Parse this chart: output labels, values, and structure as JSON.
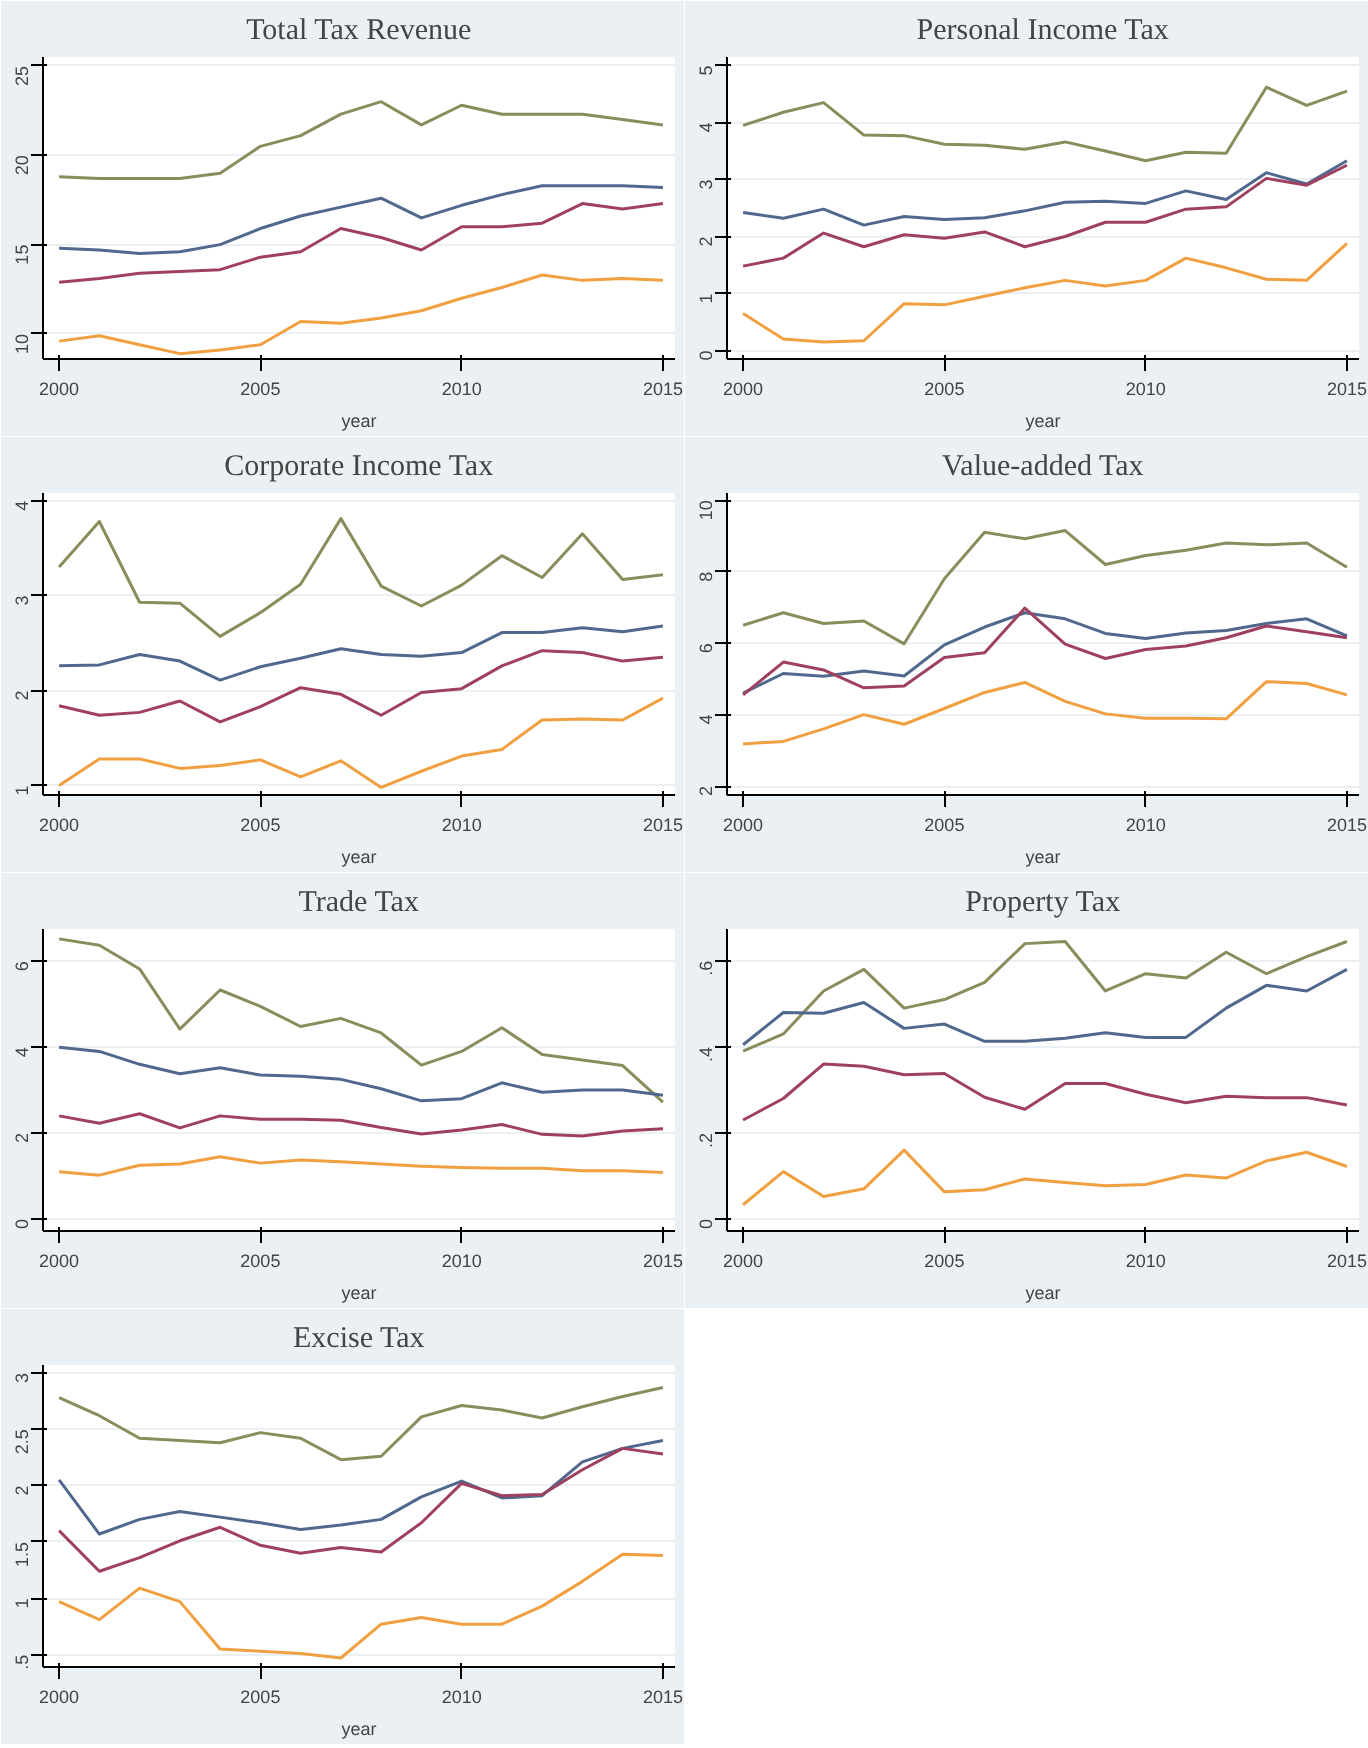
{
  "chart_data": [
    {
      "type": "line",
      "title": "Total Tax Revenue",
      "xlabel": "year",
      "x": [
        2000,
        2001,
        2002,
        2003,
        2004,
        2005,
        2006,
        2007,
        2008,
        2009,
        2010,
        2011,
        2012,
        2013,
        2014,
        2015
      ],
      "xlim": [
        1999.6,
        2015.3
      ],
      "xticks": [
        2000,
        2005,
        2010,
        2015
      ],
      "ylim": [
        8.6,
        25.5
      ],
      "yticks": [
        10,
        15,
        20,
        25
      ],
      "grid": "y",
      "series": [
        {
          "color": "#8a8c5c",
          "values": [
            18.8,
            18.7,
            18.7,
            18.7,
            19.0,
            20.5,
            21.1,
            22.3,
            23.0,
            21.7,
            22.8,
            22.3,
            22.3,
            22.3,
            22.0,
            21.7
          ]
        },
        {
          "color": "#50688e",
          "values": [
            14.8,
            14.7,
            14.5,
            14.6,
            15.0,
            15.9,
            16.6,
            17.1,
            17.6,
            16.5,
            17.2,
            17.8,
            18.3,
            18.3,
            18.3,
            18.2
          ]
        },
        {
          "color": "#a04060",
          "values": [
            12.9,
            13.1,
            13.4,
            13.5,
            13.6,
            14.3,
            14.6,
            15.9,
            15.4,
            14.7,
            16.0,
            16.0,
            16.2,
            17.3,
            17.0,
            17.3
          ]
        },
        {
          "color": "#f0a040",
          "values": [
            9.6,
            9.9,
            9.4,
            8.9,
            9.1,
            9.4,
            10.7,
            10.6,
            10.9,
            11.3,
            12.0,
            12.6,
            13.3,
            13.0,
            13.1,
            13.0
          ]
        }
      ]
    },
    {
      "type": "line",
      "title": "Personal Income Tax",
      "xlabel": "year",
      "x": [
        2000,
        2001,
        2002,
        2003,
        2004,
        2005,
        2006,
        2007,
        2008,
        2009,
        2010,
        2011,
        2012,
        2013,
        2014,
        2015
      ],
      "xlim": [
        1999.6,
        2015.3
      ],
      "xticks": [
        2000,
        2005,
        2010,
        2015
      ],
      "ylim": [
        -0.15,
        5.15
      ],
      "yticks": [
        0,
        1,
        2,
        3,
        4,
        5
      ],
      "grid": "y",
      "series": [
        {
          "color": "#8a8c5c",
          "values": [
            3.95,
            4.18,
            4.35,
            3.78,
            3.77,
            3.62,
            3.6,
            3.53,
            3.66,
            3.5,
            3.33,
            3.48,
            3.46,
            4.62,
            4.3,
            4.55
          ]
        },
        {
          "color": "#50688e",
          "values": [
            2.42,
            2.32,
            2.48,
            2.2,
            2.35,
            2.3,
            2.33,
            2.45,
            2.6,
            2.62,
            2.58,
            2.8,
            2.65,
            3.12,
            2.92,
            3.33
          ]
        },
        {
          "color": "#a04060",
          "values": [
            1.48,
            1.62,
            2.06,
            1.82,
            2.03,
            1.97,
            2.08,
            1.82,
            2.0,
            2.25,
            2.25,
            2.48,
            2.52,
            3.02,
            2.9,
            3.25
          ]
        },
        {
          "color": "#f0a040",
          "values": [
            0.65,
            0.2,
            0.15,
            0.17,
            0.82,
            0.8,
            0.95,
            1.1,
            1.23,
            1.13,
            1.23,
            1.62,
            1.45,
            1.25,
            1.23,
            1.88
          ]
        }
      ]
    },
    {
      "type": "line",
      "title": "Corporate Income Tax",
      "xlabel": "year",
      "x": [
        2000,
        2001,
        2002,
        2003,
        2004,
        2005,
        2006,
        2007,
        2008,
        2009,
        2010,
        2011,
        2012,
        2013,
        2014,
        2015
      ],
      "xlim": [
        1999.6,
        2015.3
      ],
      "xticks": [
        2000,
        2005,
        2010,
        2015
      ],
      "ylim": [
        0.9,
        4.08
      ],
      "yticks": [
        1,
        2,
        3,
        4
      ],
      "grid": "y",
      "series": [
        {
          "color": "#8a8c5c",
          "values": [
            3.3,
            3.78,
            2.93,
            2.92,
            2.57,
            2.82,
            3.12,
            3.81,
            3.1,
            2.89,
            3.11,
            3.42,
            3.19,
            3.65,
            3.17,
            3.22
          ]
        },
        {
          "color": "#50688e",
          "values": [
            2.26,
            2.27,
            2.38,
            2.31,
            2.11,
            2.25,
            2.34,
            2.44,
            2.38,
            2.36,
            2.4,
            2.61,
            2.61,
            2.66,
            2.62,
            2.68
          ]
        },
        {
          "color": "#a04060",
          "values": [
            1.84,
            1.74,
            1.77,
            1.89,
            1.67,
            1.83,
            2.03,
            1.96,
            1.74,
            1.98,
            2.02,
            2.26,
            2.42,
            2.4,
            2.31,
            2.35
          ]
        },
        {
          "color": "#f0a040",
          "values": [
            1.0,
            1.28,
            1.28,
            1.18,
            1.21,
            1.27,
            1.09,
            1.26,
            0.98,
            1.15,
            1.31,
            1.38,
            1.69,
            1.7,
            1.69,
            1.92
          ]
        }
      ]
    },
    {
      "type": "line",
      "title": "Value-added Tax",
      "xlabel": "year",
      "x": [
        2000,
        2001,
        2002,
        2003,
        2004,
        2005,
        2006,
        2007,
        2008,
        2009,
        2010,
        2011,
        2012,
        2013,
        2014,
        2015
      ],
      "xlim": [
        1999.6,
        2015.3
      ],
      "xticks": [
        2000,
        2005,
        2010,
        2015
      ],
      "ylim": [
        1.75,
        10.2
      ],
      "yticks": [
        2,
        4,
        6,
        8,
        10
      ],
      "grid": "y",
      "series": [
        {
          "color": "#8a8c5c",
          "values": [
            6.5,
            6.85,
            6.55,
            6.62,
            5.98,
            7.8,
            9.1,
            8.92,
            9.15,
            8.2,
            8.45,
            8.6,
            8.8,
            8.75,
            8.8,
            8.12
          ]
        },
        {
          "color": "#50688e",
          "values": [
            4.6,
            5.15,
            5.07,
            5.22,
            5.08,
            5.95,
            6.45,
            6.85,
            6.68,
            6.27,
            6.13,
            6.28,
            6.35,
            6.55,
            6.68,
            6.2
          ]
        },
        {
          "color": "#a04060",
          "values": [
            4.55,
            5.47,
            5.25,
            4.75,
            4.8,
            5.6,
            5.73,
            6.98,
            5.97,
            5.57,
            5.82,
            5.92,
            6.15,
            6.48,
            6.32,
            6.15
          ]
        },
        {
          "color": "#f0a040",
          "values": [
            3.18,
            3.25,
            3.6,
            4.0,
            3.73,
            4.17,
            4.62,
            4.9,
            4.37,
            4.02,
            3.9,
            3.9,
            3.88,
            4.92,
            4.87,
            4.55
          ]
        }
      ]
    },
    {
      "type": "line",
      "title": "Trade Tax",
      "xlabel": "year",
      "x": [
        2000,
        2001,
        2002,
        2003,
        2004,
        2005,
        2006,
        2007,
        2008,
        2009,
        2010,
        2011,
        2012,
        2013,
        2014,
        2015
      ],
      "xlim": [
        1999.6,
        2015.3
      ],
      "xticks": [
        2000,
        2005,
        2010,
        2015
      ],
      "ylim": [
        -0.28,
        6.75
      ],
      "yticks": [
        0,
        2,
        4,
        6
      ],
      "grid": "y",
      "series": [
        {
          "color": "#8a8c5c",
          "values": [
            6.52,
            6.37,
            5.82,
            4.42,
            5.33,
            4.95,
            4.48,
            4.67,
            4.33,
            3.58,
            3.9,
            4.45,
            3.83,
            3.7,
            3.57,
            2.72
          ]
        },
        {
          "color": "#50688e",
          "values": [
            4.0,
            3.9,
            3.6,
            3.38,
            3.52,
            3.35,
            3.32,
            3.25,
            3.03,
            2.75,
            2.8,
            3.17,
            2.95,
            3.0,
            3.0,
            2.88
          ]
        },
        {
          "color": "#a04060",
          "values": [
            2.4,
            2.23,
            2.45,
            2.12,
            2.4,
            2.32,
            2.32,
            2.3,
            2.13,
            1.98,
            2.07,
            2.2,
            1.97,
            1.93,
            2.05,
            2.1
          ]
        },
        {
          "color": "#f0a040",
          "values": [
            1.1,
            1.02,
            1.25,
            1.28,
            1.45,
            1.3,
            1.37,
            1.33,
            1.28,
            1.23,
            1.2,
            1.18,
            1.18,
            1.12,
            1.12,
            1.08
          ]
        }
      ]
    },
    {
      "type": "line",
      "title": "Property Tax",
      "xlabel": "year",
      "x": [
        2000,
        2001,
        2002,
        2003,
        2004,
        2005,
        2006,
        2007,
        2008,
        2009,
        2010,
        2011,
        2012,
        2013,
        2014,
        2015
      ],
      "xlim": [
        1999.6,
        2015.3
      ],
      "xticks": [
        2000,
        2005,
        2010,
        2015
      ],
      "ylim": [
        -0.028,
        0.674
      ],
      "yticks": [
        0,
        {
          "value": 0.2,
          "label": ".2"
        },
        {
          "value": 0.4,
          "label": ".4"
        },
        {
          "value": 0.6,
          "label": ".6"
        }
      ],
      "grid": "y",
      "series": [
        {
          "color": "#8a8c5c",
          "values": [
            0.39,
            0.43,
            0.53,
            0.58,
            0.49,
            0.51,
            0.55,
            0.64,
            0.645,
            0.53,
            0.57,
            0.56,
            0.62,
            0.57,
            0.61,
            0.645
          ]
        },
        {
          "color": "#50688e",
          "values": [
            0.405,
            0.48,
            0.478,
            0.503,
            0.443,
            0.453,
            0.413,
            0.413,
            0.42,
            0.433,
            0.422,
            0.422,
            0.49,
            0.543,
            0.53,
            0.58
          ]
        },
        {
          "color": "#a04060",
          "values": [
            0.23,
            0.28,
            0.36,
            0.355,
            0.335,
            0.338,
            0.283,
            0.255,
            0.315,
            0.315,
            0.29,
            0.27,
            0.285,
            0.282,
            0.282,
            0.265
          ]
        },
        {
          "color": "#f0a040",
          "values": [
            0.033,
            0.11,
            0.052,
            0.07,
            0.16,
            0.063,
            0.068,
            0.093,
            0.085,
            0.077,
            0.08,
            0.102,
            0.095,
            0.135,
            0.155,
            0.122
          ]
        }
      ]
    },
    {
      "type": "line",
      "title": "Excise Tax",
      "xlabel": "year",
      "x": [
        2000,
        2001,
        2002,
        2003,
        2004,
        2005,
        2006,
        2007,
        2008,
        2009,
        2010,
        2011,
        2012,
        2013,
        2014,
        2015
      ],
      "xlim": [
        1999.6,
        2015.3
      ],
      "xticks": [
        2000,
        2005,
        2010,
        2015
      ],
      "ylim": [
        0.39,
        3.07
      ],
      "yticks": [
        {
          "value": 0.5,
          "label": ".5"
        },
        1,
        1.5,
        2,
        2.5,
        3
      ],
      "grid": "y",
      "series": [
        {
          "color": "#8a8c5c",
          "values": [
            2.78,
            2.62,
            2.42,
            2.4,
            2.38,
            2.47,
            2.42,
            2.23,
            2.26,
            2.61,
            2.71,
            2.67,
            2.6,
            2.7,
            2.79,
            2.87
          ]
        },
        {
          "color": "#50688e",
          "values": [
            2.05,
            1.57,
            1.7,
            1.77,
            1.72,
            1.67,
            1.61,
            1.65,
            1.7,
            1.9,
            2.04,
            1.89,
            1.91,
            2.21,
            2.33,
            2.4
          ]
        },
        {
          "color": "#a04060",
          "values": [
            1.6,
            1.24,
            1.36,
            1.51,
            1.63,
            1.47,
            1.4,
            1.45,
            1.41,
            1.67,
            2.02,
            1.91,
            1.92,
            2.14,
            2.33,
            2.28
          ]
        },
        {
          "color": "#f0a040",
          "values": [
            0.97,
            0.81,
            1.09,
            0.97,
            0.55,
            0.53,
            0.51,
            0.47,
            0.77,
            0.83,
            0.77,
            0.77,
            0.93,
            1.15,
            1.39,
            1.38
          ]
        }
      ]
    }
  ]
}
